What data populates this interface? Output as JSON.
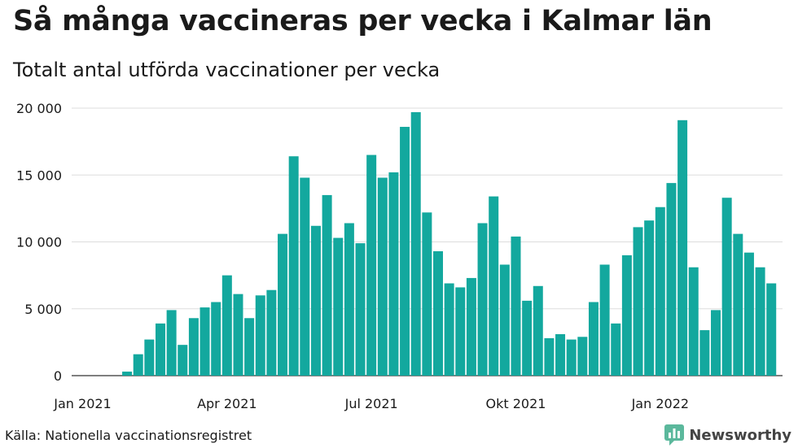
{
  "title": "Så många vaccineras per vecka i Kalmar län",
  "subtitle": "Totalt antal utförda vaccinationer per vecka",
  "source": "Källa: Nationella vaccinationsregistret",
  "brand": "Newsworthy",
  "colors": {
    "bar": "#13a89e",
    "grid": "#dddddd",
    "text": "#1a1a1a",
    "brand_icon": "#5bb89c"
  },
  "chart_data": {
    "type": "bar",
    "title": "Så många vaccineras per vecka i Kalmar län",
    "subtitle": "Totalt antal utförda vaccinationer per vecka",
    "xlabel": "",
    "ylabel": "",
    "ylim": [
      0,
      20000
    ],
    "yticks": [
      0,
      5000,
      10000,
      15000,
      20000
    ],
    "ytick_labels": [
      "0",
      "5 000",
      "10 000",
      "15 000",
      "20 000"
    ],
    "xtick_labels": [
      {
        "label": "Jan 2021",
        "index": 0
      },
      {
        "label": "Apr 2021",
        "index": 13
      },
      {
        "label": "Jul 2021",
        "index": 26
      },
      {
        "label": "Okt 2021",
        "index": 39
      },
      {
        "label": "Jan 2022",
        "index": 52
      }
    ],
    "grid": true,
    "values": [
      0,
      0,
      0,
      0,
      300,
      1600,
      2700,
      3900,
      4900,
      2300,
      4300,
      5100,
      5500,
      7500,
      6100,
      4300,
      6000,
      6400,
      10600,
      16400,
      14800,
      11200,
      13500,
      10300,
      11400,
      9900,
      16500,
      14800,
      15200,
      18600,
      19700,
      12200,
      9300,
      6900,
      6600,
      7300,
      11400,
      13400,
      8300,
      10400,
      5600,
      6700,
      2800,
      3100,
      2700,
      2900,
      5500,
      8300,
      3900,
      9000,
      11100,
      11600,
      12600,
      14400,
      19100,
      8100,
      3400,
      4900,
      13300,
      10600,
      9200,
      8100,
      6900
    ]
  }
}
